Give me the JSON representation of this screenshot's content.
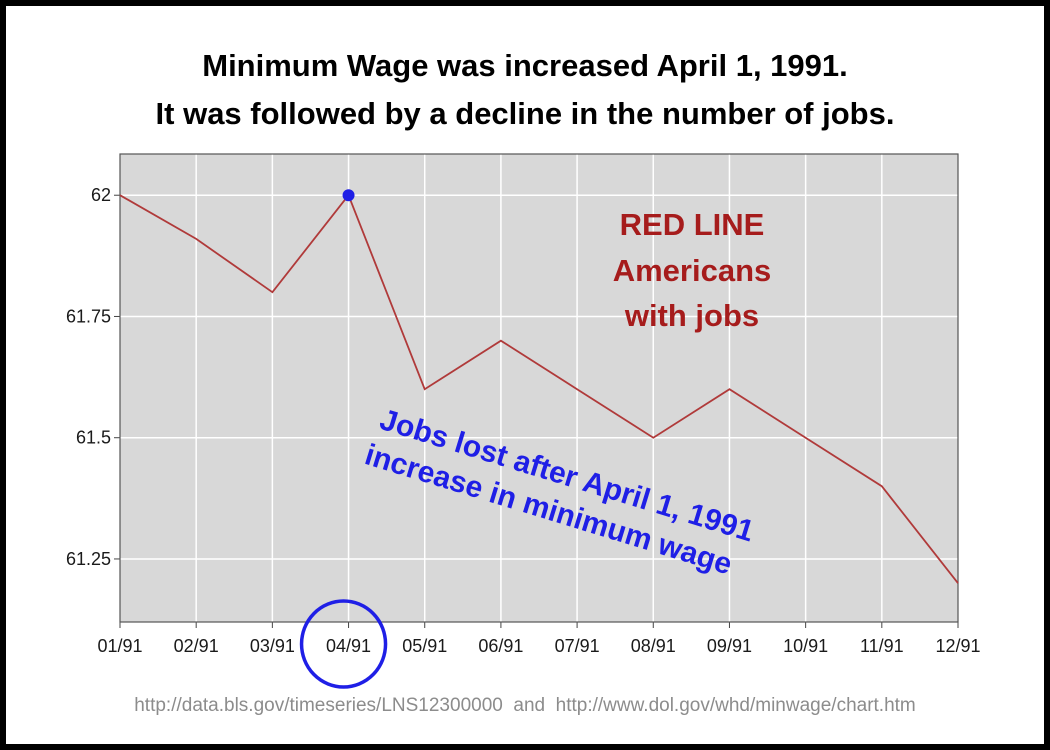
{
  "chart_data": {
    "type": "line",
    "title": "Minimum Wage was increased April 1, 1991.",
    "subtitle": "It was followed by a decline in the number of jobs.",
    "categories": [
      "01/91",
      "02/91",
      "03/91",
      "04/91",
      "05/91",
      "06/91",
      "07/91",
      "08/91",
      "09/91",
      "10/91",
      "11/91",
      "12/91"
    ],
    "series": [
      {
        "values": [
          62.0,
          61.91,
          61.8,
          62.0,
          61.6,
          61.7,
          61.6,
          61.5,
          61.6,
          61.5,
          61.4,
          61.2
        ],
        "color": "#b03a3a"
      }
    ],
    "y_ticks": [
      "62",
      "61.75",
      "61.5",
      "61.25"
    ],
    "y_tick_values": [
      62,
      61.75,
      61.5,
      61.25
    ],
    "ylim": [
      61.12,
      62.085
    ],
    "grid": true,
    "plot_background": "#d8d8d8",
    "highlight": {
      "category": "04/91",
      "value": 62.0,
      "marker_color": "#1f1fe6"
    },
    "legend": {
      "lines": [
        "RED LINE",
        "Americans",
        "with jobs"
      ],
      "color": "#a61c1c"
    },
    "annotation": {
      "lines": [
        "Jobs lost after April 1, 1991",
        "increase in minimum wage"
      ],
      "color": "#1f1fe6"
    },
    "circled_tick": "04/91"
  },
  "source_text": "http://data.bls.gov/timeseries/LNS12300000  and  http://www.dol.gov/whd/minwage/chart.htm"
}
